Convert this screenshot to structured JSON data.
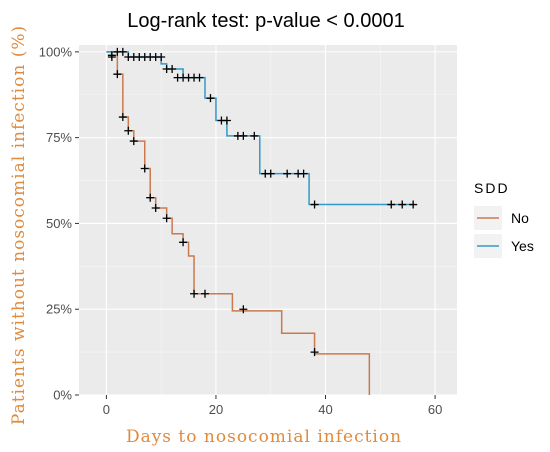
{
  "chart_data": {
    "type": "line",
    "title": "Log-rank test: p-value < 0.0001",
    "xlabel": "Days to nosocomial infection",
    "ylabel": "Patients without nosocomial infection (%)",
    "x_ticks": [
      "0",
      "20",
      "40",
      "60"
    ],
    "y_ticks": [
      "0%",
      "25%",
      "50%",
      "75%",
      "100%"
    ],
    "xlim": [
      -5,
      64
    ],
    "ylim": [
      0,
      1.02
    ],
    "legend": {
      "title": "SDD",
      "position": "right"
    },
    "series": [
      {
        "name": "No",
        "color": "#c97a4e",
        "steps": [
          [
            0,
            1.0
          ],
          [
            2,
            0.935
          ],
          [
            3,
            0.81
          ],
          [
            4,
            0.77
          ],
          [
            5,
            0.74
          ],
          [
            7,
            0.66
          ],
          [
            8,
            0.575
          ],
          [
            9,
            0.545
          ],
          [
            11,
            0.515
          ],
          [
            12,
            0.47
          ],
          [
            14,
            0.445
          ],
          [
            15,
            0.405
          ],
          [
            16,
            0.295
          ],
          [
            23,
            0.245
          ],
          [
            32,
            0.18
          ],
          [
            38,
            0.12
          ],
          [
            48,
            0.0
          ]
        ],
        "censored": [
          [
            1,
            0.985
          ],
          [
            2,
            0.935
          ],
          [
            3,
            0.81
          ],
          [
            4,
            0.77
          ],
          [
            5,
            0.74
          ],
          [
            7,
            0.66
          ],
          [
            8,
            0.575
          ],
          [
            9,
            0.545
          ],
          [
            11,
            0.515
          ],
          [
            14,
            0.445
          ],
          [
            16,
            0.295
          ],
          [
            18,
            0.295
          ],
          [
            25,
            0.25
          ],
          [
            38,
            0.125
          ]
        ]
      },
      {
        "name": "Yes",
        "color": "#3399c8",
        "steps": [
          [
            0,
            1.0
          ],
          [
            4,
            0.985
          ],
          [
            10,
            0.965
          ],
          [
            11,
            0.95
          ],
          [
            14,
            0.925
          ],
          [
            18,
            0.865
          ],
          [
            20,
            0.8
          ],
          [
            22,
            0.755
          ],
          [
            28,
            0.645
          ],
          [
            34,
            0.645
          ],
          [
            37,
            0.555
          ],
          [
            56,
            0.555
          ]
        ],
        "censored": [
          [
            1,
            0.99
          ],
          [
            2,
            1.0
          ],
          [
            3,
            1.0
          ],
          [
            4,
            0.985
          ],
          [
            5,
            0.985
          ],
          [
            6,
            0.985
          ],
          [
            7,
            0.985
          ],
          [
            8,
            0.985
          ],
          [
            9,
            0.985
          ],
          [
            10,
            0.985
          ],
          [
            11,
            0.95
          ],
          [
            12,
            0.95
          ],
          [
            13,
            0.925
          ],
          [
            14,
            0.925
          ],
          [
            15,
            0.925
          ],
          [
            16,
            0.925
          ],
          [
            17,
            0.925
          ],
          [
            19,
            0.865
          ],
          [
            21,
            0.8
          ],
          [
            22,
            0.8
          ],
          [
            24,
            0.755
          ],
          [
            25,
            0.755
          ],
          [
            27,
            0.755
          ],
          [
            29,
            0.645
          ],
          [
            30,
            0.645
          ],
          [
            33,
            0.645
          ],
          [
            35,
            0.645
          ],
          [
            36,
            0.645
          ],
          [
            38,
            0.555
          ],
          [
            52,
            0.555
          ],
          [
            54,
            0.555
          ],
          [
            56,
            0.555
          ]
        ]
      }
    ]
  }
}
